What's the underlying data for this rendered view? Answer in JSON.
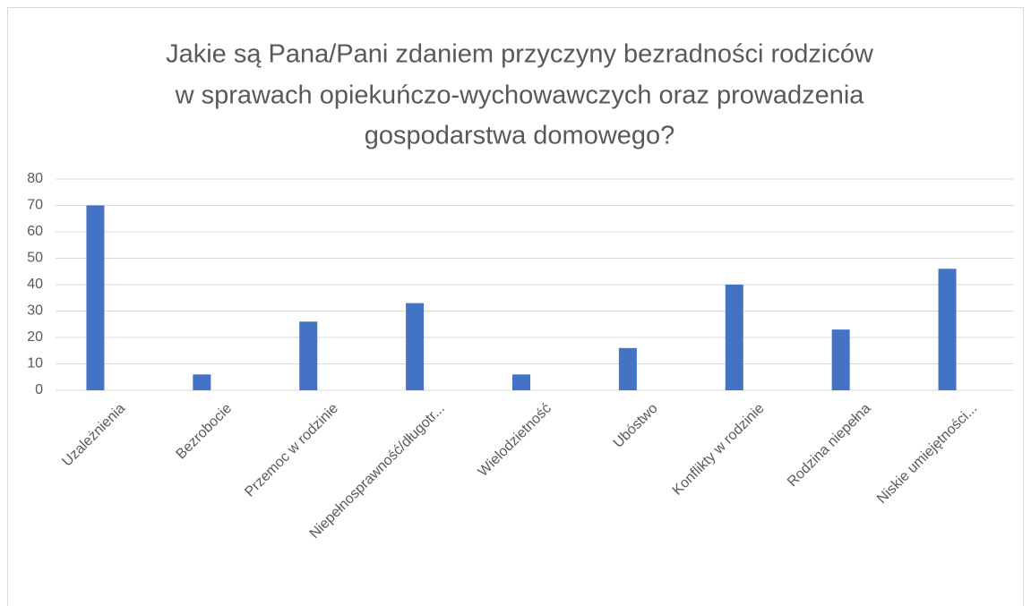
{
  "chart_data": {
    "type": "bar",
    "title": [
      "Jakie są Pana/Pani zdaniem przyczyny bezradności rodziców",
      "w sprawach opiekuńczo-wychowawczych oraz prowadzenia",
      "gospodarstwa domowego?"
    ],
    "categories": [
      "Uzależnienia",
      "Bezrobocie",
      "Przemoc w rodzinie",
      "Niepełnosprawność/długotr...",
      "Wielodzietność",
      "Ubóstwo",
      "Konflikty w rodzinie",
      "Rodzina niepełna",
      "Niskie umiejętności..."
    ],
    "values": [
      70,
      6,
      26,
      33,
      6,
      16,
      40,
      23,
      46
    ],
    "color": "#4472c4",
    "ylim": [
      0,
      80
    ],
    "yticks": [
      0,
      10,
      20,
      30,
      40,
      50,
      60,
      70,
      80
    ],
    "grid": true
  }
}
